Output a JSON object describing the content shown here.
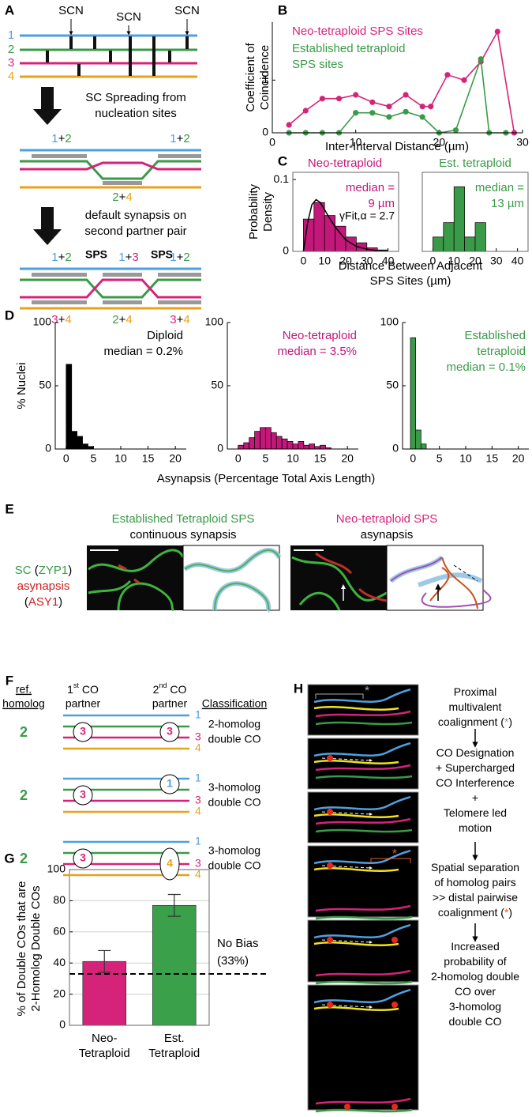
{
  "panel_labels": [
    "A",
    "B",
    "C",
    "D",
    "E",
    "F",
    "G",
    "H"
  ],
  "panel_a": {
    "homologs": [
      "1",
      "2",
      "3",
      "4"
    ],
    "scn": [
      "SCN",
      "SCN",
      "SCN"
    ],
    "step1": [
      "SC Spreading from",
      "nucleation sites"
    ],
    "step2": [
      "default synapsis on",
      "second partner pair"
    ],
    "mid_top": [
      [
        "1",
        "+",
        "2"
      ],
      [
        "1",
        "+",
        "2"
      ]
    ],
    "mid_bottom": [
      [
        "2",
        "+",
        "4"
      ]
    ],
    "bottom_top": [
      [
        "1",
        "+",
        "2"
      ],
      [
        "1",
        "+",
        "3"
      ],
      [
        "1",
        "+",
        "2"
      ]
    ],
    "sps": [
      "SPS",
      "SPS"
    ],
    "bottom_bottom": [
      [
        "3",
        "+",
        "4"
      ],
      [
        "2",
        "+",
        "4"
      ],
      [
        "3",
        "+",
        "4"
      ]
    ]
  },
  "chart_data": [
    {
      "type": "line",
      "ylabel": [
        "Coefficient of",
        "Coincidence"
      ],
      "xlabel": "Inter-Interval Distance (µm)",
      "xlim": [
        0,
        30
      ],
      "xticks": [
        0,
        10,
        20,
        30
      ],
      "ylim": [
        0,
        2.1
      ],
      "yticks": [
        0,
        1
      ],
      "series": [
        {
          "name": [
            "Neo-tetraploid SPS Sites"
          ],
          "color": "#d6237a",
          "x": [
            2,
            4,
            6,
            8,
            10,
            12,
            14,
            16,
            18,
            19,
            21,
            23,
            25,
            27,
            29
          ],
          "values": [
            0.15,
            0.42,
            0.65,
            0.65,
            0.72,
            0.58,
            0.5,
            0.72,
            0.5,
            0.5,
            1.1,
            1.0,
            1.35,
            1.92,
            0
          ]
        },
        {
          "name": [
            "Established tetraploid",
            "SPS sites"
          ],
          "color": "#3a9a47",
          "x": [
            2,
            4,
            6,
            8,
            10,
            12,
            14,
            16,
            18,
            20,
            22,
            25,
            26,
            28
          ],
          "values": [
            0,
            0,
            0,
            0,
            0.38,
            0.38,
            0.3,
            0.4,
            0.3,
            0,
            0.05,
            1.4,
            0,
            0
          ]
        }
      ]
    },
    {
      "type": "histogram",
      "title": "Neo-tetraploid",
      "color": "#c2187a",
      "ylabel": [
        "Probability",
        "Density"
      ],
      "xlabel": [
        "Distance Between Adjacent",
        "SPS Sites (µm)"
      ],
      "xlim": [
        -5,
        45
      ],
      "xticks": [
        0,
        10,
        20,
        30,
        40
      ],
      "ylim": [
        0,
        0.11
      ],
      "yticks": [
        0,
        0.1
      ],
      "box": true,
      "bins": [
        0,
        5,
        10,
        15,
        20,
        25,
        30,
        35,
        40
      ],
      "values": [
        0.045,
        0.068,
        0.05,
        0.035,
        0.02,
        0.012,
        0.005,
        0.002
      ],
      "annotation": [
        "median =",
        "9 µm"
      ],
      "fit": {
        "name": "γFit,α = 2.7",
        "color": "#000000",
        "x": [
          0,
          2,
          4,
          6,
          8,
          10,
          12,
          15,
          20,
          25,
          30,
          35,
          40
        ],
        "values": [
          0,
          0.04,
          0.065,
          0.072,
          0.068,
          0.058,
          0.048,
          0.034,
          0.016,
          0.007,
          0.003,
          0.001,
          0.0005
        ]
      }
    },
    {
      "type": "histogram",
      "title": "Est. tetraploid",
      "color": "#3a9a47",
      "xlim": [
        -5,
        45
      ],
      "xticks": [
        0,
        10,
        20,
        30,
        40
      ],
      "ylim": [
        0,
        0.11
      ],
      "box": true,
      "bins": [
        0,
        5,
        10,
        15,
        20,
        25
      ],
      "values": [
        0.02,
        0.04,
        0.09,
        0.02,
        0.04
      ],
      "annotation": [
        "median =",
        "13 µm"
      ]
    },
    {
      "type": "histogram",
      "color": "#000000",
      "ylabel": [
        "% Nuclei"
      ],
      "xlabel": [
        "Asynapsis (Percentage Total Axis Length)"
      ],
      "xlim": [
        -2,
        22
      ],
      "xticks": [
        0,
        5,
        10,
        15,
        20
      ],
      "ylim": [
        0,
        100
      ],
      "yticks": [
        0,
        50,
        100
      ],
      "bins": [
        0,
        1,
        2,
        3,
        4,
        5
      ],
      "values": [
        67,
        14,
        10,
        4,
        2
      ],
      "annotation": [
        "Diploid",
        "median = 0.2%"
      ]
    },
    {
      "type": "histogram",
      "color": "#c2187a",
      "xlim": [
        -2,
        22
      ],
      "xticks": [
        0,
        5,
        10,
        15,
        20
      ],
      "ylim": [
        0,
        100
      ],
      "yticks": [
        0,
        50,
        100
      ],
      "bins": [
        0,
        1,
        2,
        3,
        4,
        5,
        6,
        7,
        8,
        9,
        10,
        11,
        12,
        13,
        14,
        15,
        16,
        17
      ],
      "values": [
        3,
        5,
        9,
        14,
        17,
        17,
        13,
        10,
        8,
        6,
        4,
        6,
        3,
        4,
        2,
        3,
        1
      ],
      "annotation": [
        "Neo-tetraploid",
        "median = 3.5%"
      ]
    },
    {
      "type": "histogram",
      "color": "#3a9a47",
      "xlim": [
        -2,
        22
      ],
      "xticks": [
        0,
        5,
        10,
        15,
        20
      ],
      "ylim": [
        0,
        100
      ],
      "yticks": [
        0,
        50,
        100
      ],
      "bins": [
        -0.5,
        0.5,
        1.5,
        2.5
      ],
      "values": [
        88,
        15,
        4
      ],
      "annotation": [
        "Established",
        "tetraploid",
        "median = 0.1%"
      ]
    },
    {
      "type": "bar",
      "ylabel": [
        "% of Double COs that are",
        "2-Homolog Double COs"
      ],
      "categories": [
        [
          "Neo-",
          "Tetraploid"
        ],
        [
          "Est.",
          "Tetraploid"
        ]
      ],
      "values": [
        41,
        77
      ],
      "errors": [
        7,
        7
      ],
      "colors": [
        "#d6237a",
        "#3aa04a"
      ],
      "ylim": [
        0,
        100
      ],
      "yticks": [
        0,
        20,
        40,
        60,
        80,
        100
      ],
      "grid": true,
      "box": true,
      "hline": {
        "value": 33,
        "label": [
          "No Bias",
          "(33%)"
        ]
      }
    }
  ],
  "panel_e": {
    "legend": [
      [
        "SC",
        " (",
        "ZYP1",
        ")"
      ],
      [
        "asynapsis"
      ],
      [
        "(",
        "ASY1",
        ")"
      ]
    ],
    "left_title": "Established Tetraploid SPS",
    "left_subtitle": "continuous synapsis",
    "right_title": "Neo-tetraploid SPS",
    "right_subtitle": "asynapsis"
  },
  "panel_f": {
    "ref_header": [
      "ref.",
      "homolog"
    ],
    "first_header": [
      "1",
      "st",
      " CO"
    ],
    "second_header": [
      "2",
      "nd",
      " CO"
    ],
    "partner": "partner",
    "class_header": "Classification",
    "groups": [
      {
        "ref": "2",
        "right": [
          "1",
          "3",
          "4"
        ],
        "circles": [
          "3",
          "3"
        ],
        "class": [
          "2-homolog",
          "double CO"
        ]
      },
      {
        "ref": "2",
        "right": [
          "1",
          "3",
          "4"
        ],
        "circles": [
          "3",
          "1"
        ],
        "class": [
          "3-homolog",
          "double CO"
        ]
      },
      {
        "ref": "2",
        "right": [
          "1",
          "3",
          "4"
        ],
        "circles": [
          "3",
          "4"
        ],
        "class": [
          "3-homolog",
          "double CO"
        ]
      }
    ]
  },
  "panel_h": {
    "marks": [
      "*",
      "*"
    ],
    "steps": [
      [
        [
          "Proximal"
        ],
        [
          "multivalent"
        ],
        [
          "coalignment (",
          "*",
          ")"
        ]
      ],
      [
        [
          "CO Designation"
        ],
        [
          "+ Supercharged"
        ],
        [
          "CO Interference"
        ],
        [
          "+"
        ],
        [
          "Telomere led"
        ],
        [
          "motion"
        ]
      ],
      [
        [
          "Spatial separation"
        ],
        [
          "of homolog pairs"
        ],
        [
          ">> distal pairwise"
        ],
        [
          "coalignment (",
          "*",
          ")"
        ]
      ],
      [
        [
          "Increased"
        ],
        [
          "probability of"
        ],
        [
          "2-homolog double"
        ],
        [
          "CO over"
        ],
        [
          "3-homolog"
        ],
        [
          "double CO"
        ]
      ]
    ]
  }
}
